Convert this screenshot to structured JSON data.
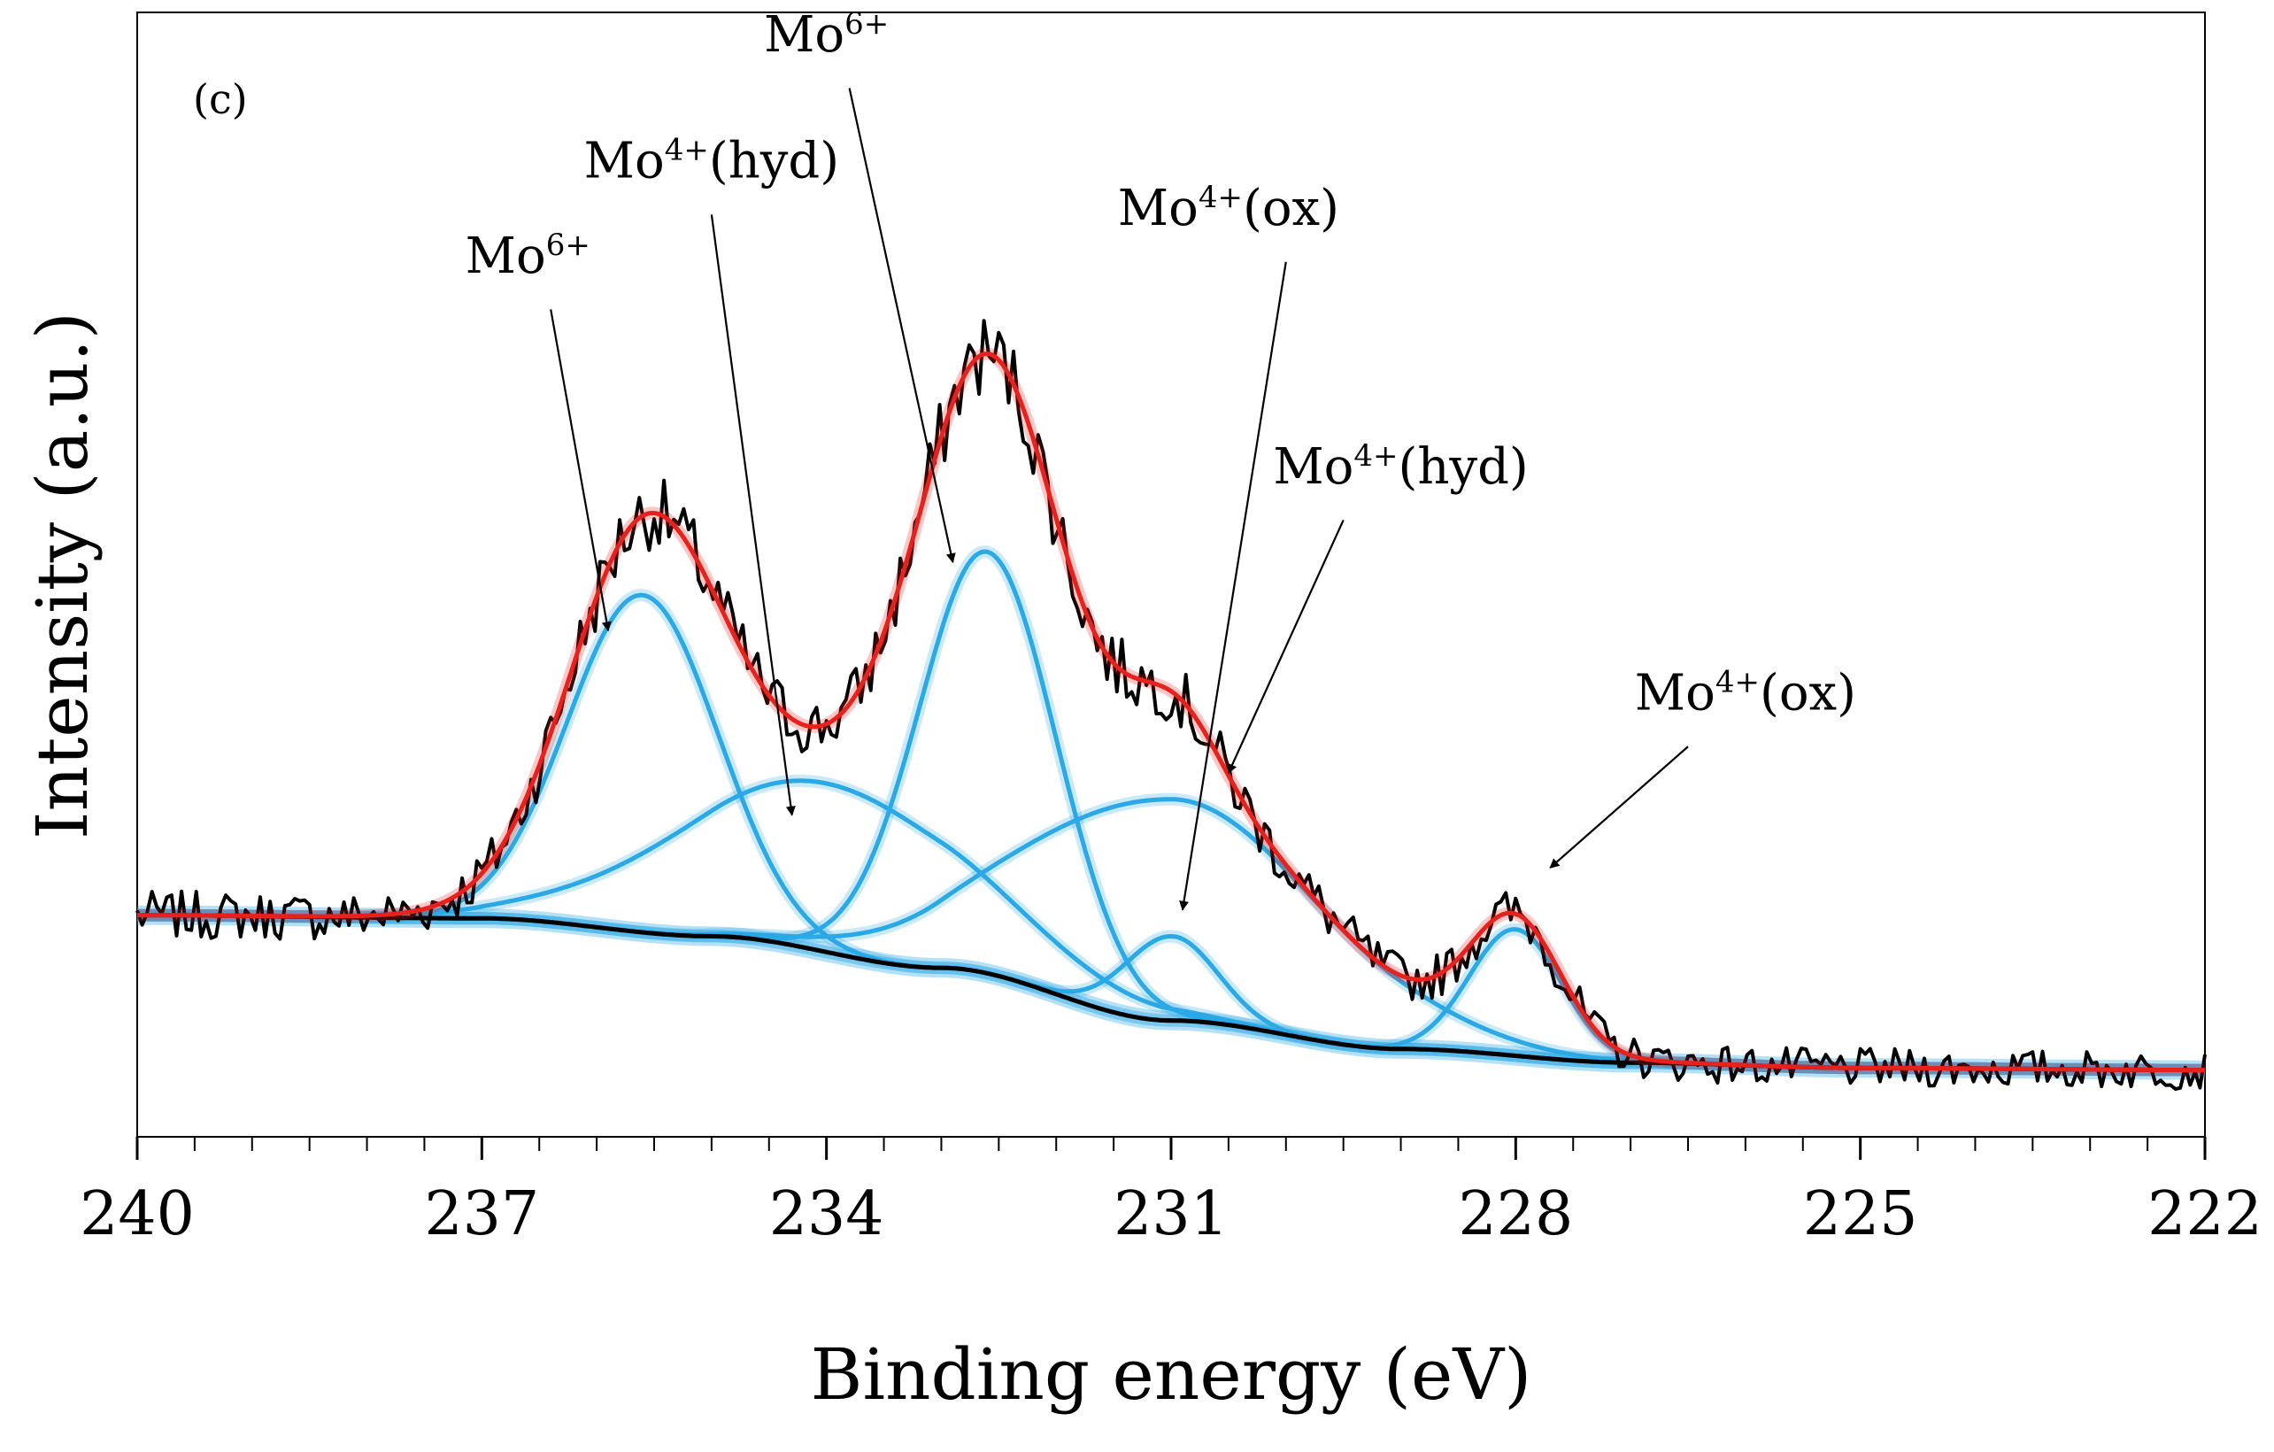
{
  "chart_data": {
    "type": "line",
    "panel_label": "(c)",
    "xlabel": "Binding energy (eV)",
    "ylabel": "Intensity (a.u.)",
    "x_reversed": true,
    "xlim": [
      240,
      222
    ],
    "ylim": [
      0,
      100
    ],
    "x_ticks_major": [
      240,
      237,
      234,
      231,
      228,
      225,
      222
    ],
    "x_tick_labels": [
      "240",
      "237",
      "234",
      "231",
      "228",
      "225",
      "222"
    ],
    "y_tick_labels": "none",
    "grid": false,
    "legend": "none",
    "colors": {
      "raw": "#000000",
      "envelope": "#e8211c",
      "components": "#2aa9e6",
      "background": "#000000"
    },
    "background_curve": {
      "points": [
        [
          240,
          16.5
        ],
        [
          237,
          16.2
        ],
        [
          235,
          14.5
        ],
        [
          233,
          11.5
        ],
        [
          231,
          6.5
        ],
        [
          229,
          3.8
        ],
        [
          227,
          2.5
        ],
        [
          225,
          2.0
        ],
        [
          222,
          1.8
        ]
      ]
    },
    "components": [
      {
        "label": "Mo6+",
        "center": 235.6,
        "height": 32,
        "sigma": 0.65
      },
      {
        "label": "Mo4+(hyd)",
        "center": 234.0,
        "height": 16,
        "sigma": 1.3
      },
      {
        "label": "Mo6+",
        "center": 232.6,
        "height": 40,
        "sigma": 0.6
      },
      {
        "label": "Mo4+(hyd)",
        "center": 231.0,
        "height": 21,
        "sigma": 1.3
      },
      {
        "label": "Mo4+(ox)",
        "center": 231.0,
        "height": 8,
        "sigma": 0.4
      },
      {
        "label": "Mo4+(ox)",
        "center": 228.0,
        "height": 12,
        "sigma": 0.4
      }
    ],
    "annotations": [
      {
        "base": "Mo",
        "sup": "6+",
        "suffix": ""
      },
      {
        "base": "Mo",
        "sup": "4+",
        "suffix": "(hyd)"
      },
      {
        "base": "Mo",
        "sup": "6+",
        "suffix": ""
      },
      {
        "base": "Mo",
        "sup": "4+",
        "suffix": "(ox)"
      },
      {
        "base": "Mo",
        "sup": "4+",
        "suffix": "(hyd)"
      },
      {
        "base": "Mo",
        "sup": "4+",
        "suffix": "(ox)"
      }
    ]
  }
}
